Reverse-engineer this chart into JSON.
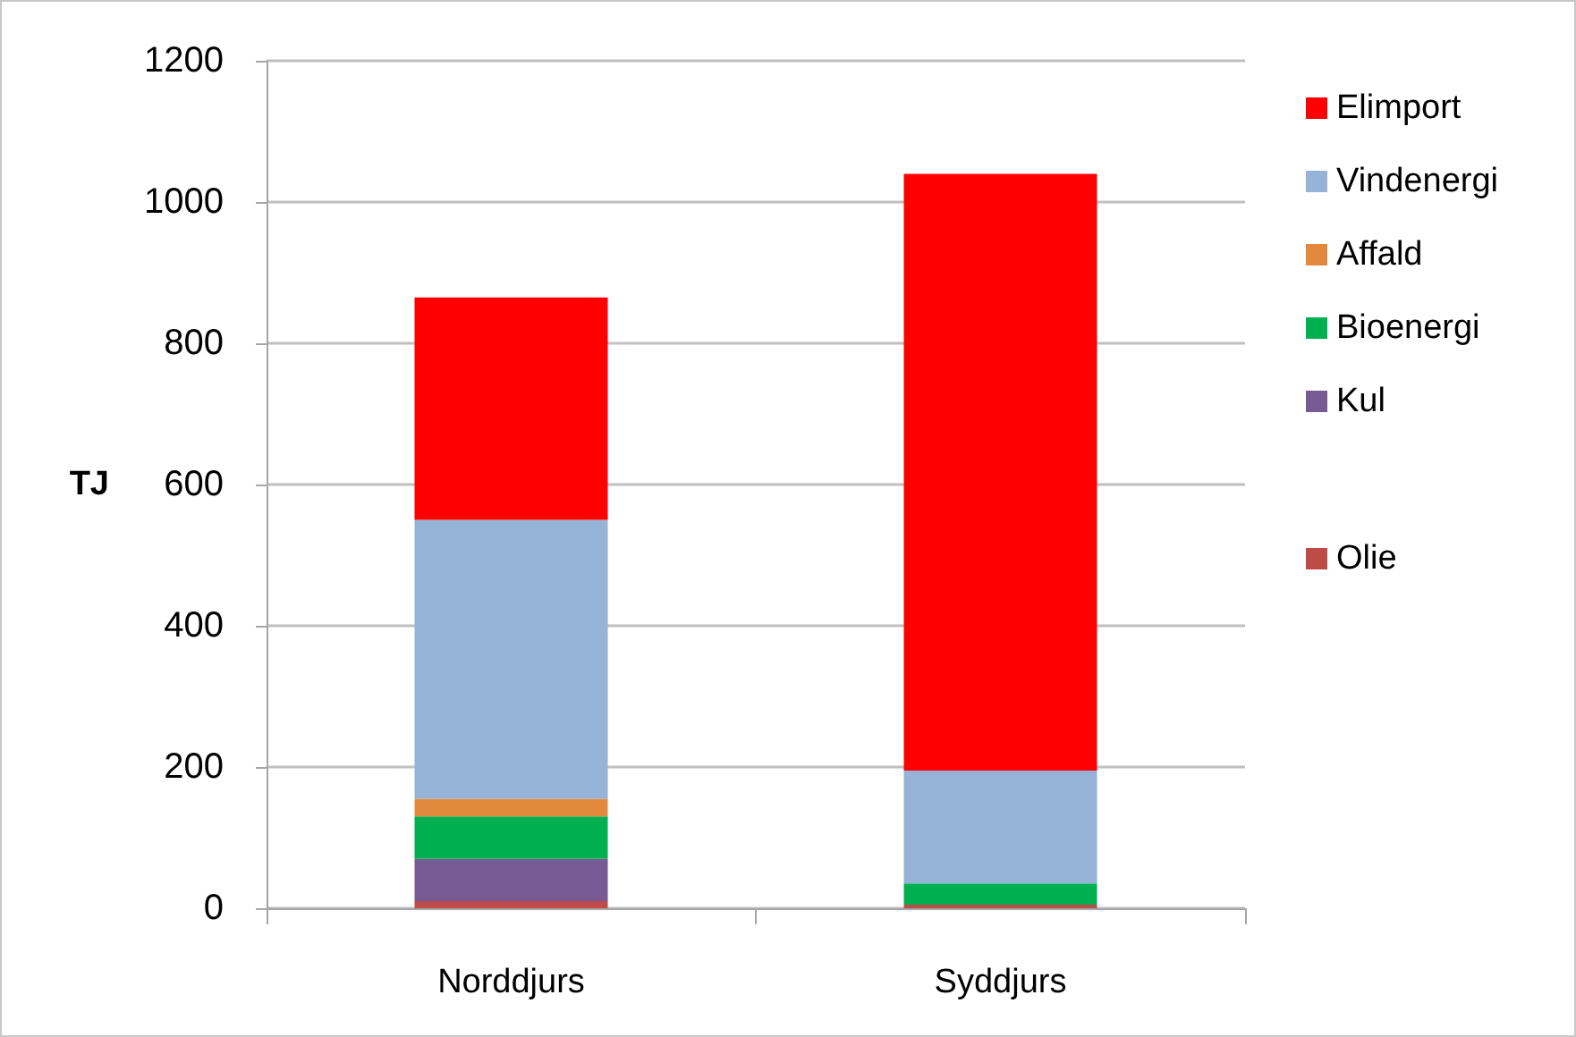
{
  "chart_data": {
    "type": "bar",
    "stacked": true,
    "categories": [
      "Norddjurs",
      "Syddjurs"
    ],
    "ylabel": "TJ",
    "series": [
      {
        "name": "Olie",
        "color": "#be4b48",
        "values": [
          10,
          5
        ]
      },
      {
        "name": "Kul",
        "color": "#775a93",
        "values": [
          60,
          0
        ]
      },
      {
        "name": "Bioenergi",
        "color": "#00b050",
        "values": [
          60,
          30
        ]
      },
      {
        "name": "Affald",
        "color": "#e3893e",
        "values": [
          25,
          0
        ]
      },
      {
        "name": "Vindenergi",
        "color": "#95b3d7",
        "values": [
          395,
          160
        ]
      },
      {
        "name": "Elimport",
        "color": "#ff0000",
        "values": [
          315,
          845
        ]
      }
    ],
    "ylim": [
      0,
      1200
    ],
    "yticks": [
      0,
      200,
      400,
      600,
      800,
      1000,
      1200
    ],
    "grid": "y",
    "legend": "right"
  }
}
